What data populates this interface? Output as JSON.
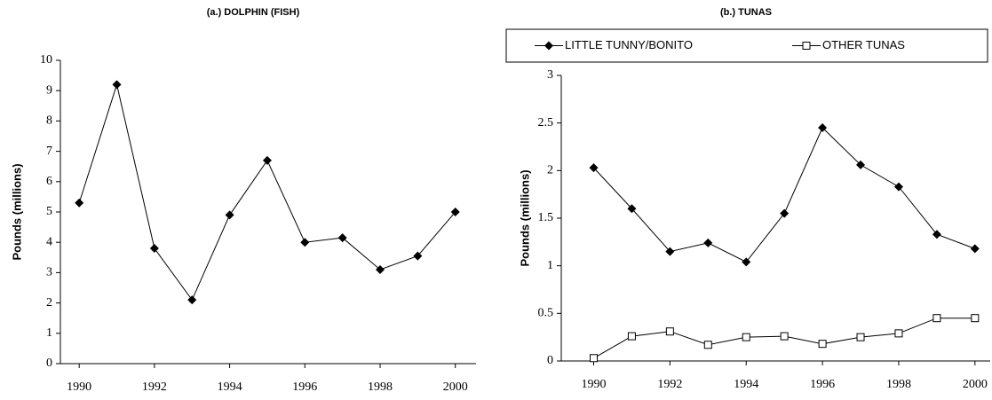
{
  "chart_data": [
    {
      "type": "line",
      "title": "(a.) DOLPHIN (FISH)",
      "y_label": "Pounds (millions)",
      "x": [
        1990,
        1991,
        1992,
        1993,
        1994,
        1995,
        1996,
        1997,
        1998,
        1999,
        2000
      ],
      "series": [
        {
          "name": null,
          "color": "#000000",
          "marker": "diamond",
          "values": [
            5.3,
            9.2,
            3.8,
            2.1,
            4.9,
            6.7,
            4.0,
            4.15,
            3.1,
            3.55,
            5.0
          ]
        }
      ],
      "xlim": [
        1989.5,
        2000.55
      ],
      "xticks": [
        1990,
        1992,
        1994,
        1996,
        1998,
        2000
      ],
      "ylim": [
        0,
        10
      ],
      "yticks": [
        0,
        1,
        2,
        3,
        4,
        5,
        6,
        7,
        8,
        9,
        10
      ]
    },
    {
      "type": "line",
      "title": "(b.) TUNAS",
      "y_label": "Pounds (millions)",
      "legend": "top",
      "x": [
        1990,
        1991,
        1992,
        1993,
        1994,
        1995,
        1996,
        1997,
        1998,
        1999,
        2000
      ],
      "series": [
        {
          "name": "LITTLE TUNNY/BONITO",
          "color": "#000000",
          "marker": "diamond",
          "values": [
            2.03,
            1.6,
            1.15,
            1.24,
            1.04,
            1.55,
            2.45,
            2.06,
            1.83,
            1.33,
            1.18
          ]
        },
        {
          "name": "OTHER TUNAS",
          "color": "#000000",
          "marker": "square",
          "values": [
            0.03,
            0.26,
            0.31,
            0.17,
            0.25,
            0.26,
            0.18,
            0.25,
            0.29,
            0.45,
            0.45
          ]
        }
      ],
      "xlim": [
        1989.15,
        2000.4
      ],
      "xticks": [
        1990,
        1992,
        1994,
        1996,
        1998,
        2000
      ],
      "ylim": [
        0,
        3
      ],
      "yticks": [
        0,
        0.5,
        1,
        1.5,
        2,
        2.5,
        3
      ]
    }
  ]
}
